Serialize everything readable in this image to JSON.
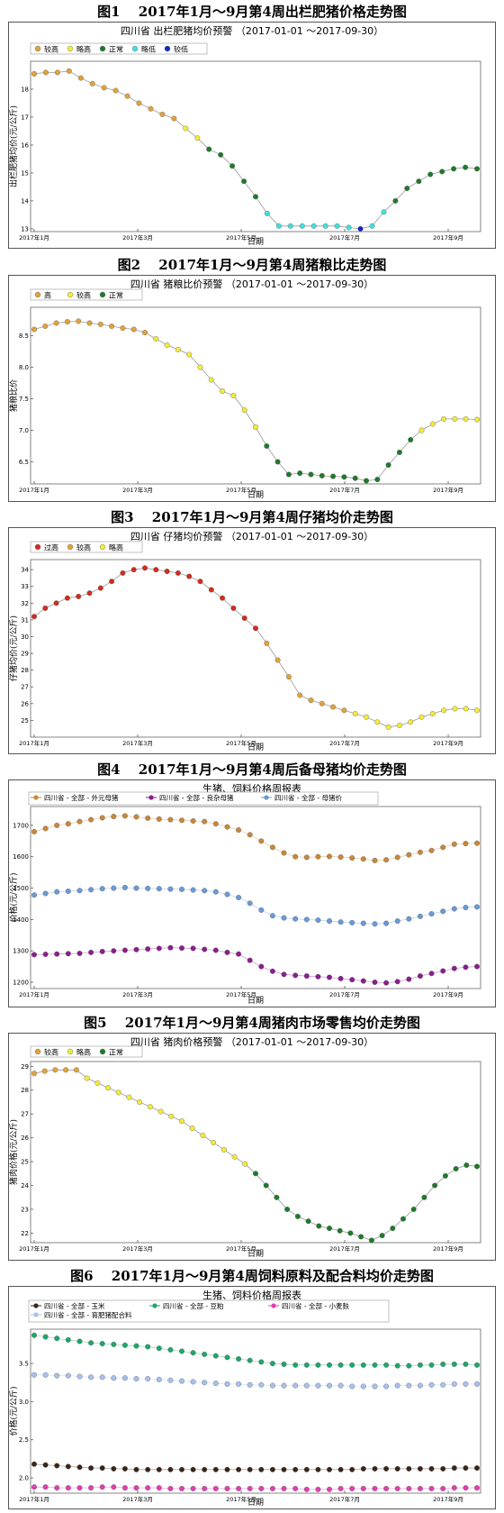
{
  "figures": [
    {
      "caption": "图1　 2017年1月～9月第4周出栏肥猪价格走势图"
    },
    {
      "caption": "图2　 2017年1月～9月第4周猪粮比走势图"
    },
    {
      "caption": "图3　 2017年1月～9月第4周仔猪均价走势图"
    },
    {
      "caption": "图4　 2017年1月～9月第4周后备母猪均价走势图"
    },
    {
      "caption": "图5　 2017年1月～9月第4周猪肉市场零售均价走势图"
    },
    {
      "caption": "图6　 2017年1月～9月第4周饲料原料及配合料均价走势图"
    }
  ],
  "chart_data": [
    {
      "type": "scatter",
      "title": "四川省 出栏肥猪均价预警 （2017-01-01 ～2017-09-30）",
      "xlabel": "日期",
      "ylabel": "出栏肥猪均价(元/公斤)",
      "x_ticks": [
        "2017年1月",
        "2017年3月",
        "2017年5月",
        "2017年7月",
        "2017年9月"
      ],
      "ylim": [
        12.9,
        19.0
      ],
      "y_ticks": [
        13,
        14,
        15,
        16,
        17,
        18
      ],
      "legend": [
        {
          "name": "较高",
          "color": "#e0a23a"
        },
        {
          "name": "略高",
          "color": "#f2ea3a"
        },
        {
          "name": "正常",
          "color": "#1f7a2a"
        },
        {
          "name": "略低",
          "color": "#41dede"
        },
        {
          "name": "较低",
          "color": "#1028c8"
        }
      ],
      "series": [
        {
          "values": [
            18.55,
            18.6,
            18.6,
            18.65,
            18.4,
            18.2,
            18.05,
            17.95,
            17.75,
            17.5,
            17.3,
            17.1,
            16.95,
            16.6,
            16.25,
            15.85,
            15.65,
            15.25,
            14.7,
            14.15,
            13.55,
            13.1,
            13.1,
            13.1,
            13.1,
            13.1,
            13.1,
            13.05,
            13.0,
            13.1,
            13.6,
            14.0,
            14.45,
            14.7,
            14.95,
            15.05,
            15.15,
            15.2,
            15.15
          ],
          "levels": [
            0,
            0,
            0,
            0,
            0,
            0,
            0,
            0,
            0,
            0,
            0,
            0,
            0,
            1,
            1,
            2,
            2,
            2,
            2,
            2,
            3,
            3,
            3,
            3,
            3,
            3,
            3,
            3,
            4,
            3,
            3,
            2,
            2,
            2,
            2,
            2,
            2,
            2,
            2
          ]
        }
      ]
    },
    {
      "type": "scatter",
      "title": "四川省 猪粮比价预警 （2017-01-01 ～2017-09-30）",
      "xlabel": "日期",
      "ylabel": "猪粮比价",
      "x_ticks": [
        "2017年1月",
        "2017年3月",
        "2017年5月",
        "2017年7月",
        "2017年9月"
      ],
      "ylim": [
        6.15,
        8.95
      ],
      "y_ticks": [
        6.5,
        7.0,
        7.5,
        8.0,
        8.5
      ],
      "legend": [
        {
          "name": "高",
          "color": "#e0a23a"
        },
        {
          "name": "较高",
          "color": "#f2ea3a"
        },
        {
          "name": "正常",
          "color": "#1f7a2a"
        }
      ],
      "series": [
        {
          "values": [
            8.6,
            8.65,
            8.7,
            8.72,
            8.73,
            8.7,
            8.68,
            8.65,
            8.62,
            8.6,
            8.55,
            8.45,
            8.35,
            8.28,
            8.2,
            8.0,
            7.8,
            7.62,
            7.55,
            7.32,
            7.05,
            6.75,
            6.5,
            6.3,
            6.32,
            6.3,
            6.28,
            6.27,
            6.26,
            6.24,
            6.2,
            6.22,
            6.45,
            6.65,
            6.85,
            7.0,
            7.1,
            7.18,
            7.18,
            7.18,
            7.17
          ],
          "levels": [
            0,
            0,
            0,
            0,
            0,
            0,
            0,
            0,
            0,
            0,
            0,
            1,
            1,
            1,
            1,
            1,
            1,
            1,
            1,
            1,
            1,
            2,
            2,
            2,
            2,
            2,
            2,
            2,
            2,
            2,
            2,
            2,
            2,
            2,
            2,
            1,
            1,
            1,
            1,
            1,
            1
          ]
        }
      ]
    },
    {
      "type": "scatter",
      "title": "四川省 仔猪均价预警 （2017-01-01 ～2017-09-30）",
      "xlabel": "日期",
      "ylabel": "仔猪均价(元/公斤)",
      "x_ticks": [
        "2017年1月",
        "2017年3月",
        "2017年5月",
        "2017年7月",
        "2017年9月"
      ],
      "ylim": [
        24.0,
        34.6
      ],
      "y_ticks": [
        25,
        26,
        27,
        28,
        29,
        30,
        31,
        32,
        33,
        34
      ],
      "legend": [
        {
          "name": "过高",
          "color": "#d42a1e"
        },
        {
          "name": "较高",
          "color": "#e0a23a"
        },
        {
          "name": "略高",
          "color": "#f2ea3a"
        }
      ],
      "series": [
        {
          "values": [
            31.2,
            31.7,
            32.0,
            32.3,
            32.4,
            32.6,
            32.9,
            33.3,
            33.8,
            34.0,
            34.1,
            34.0,
            33.9,
            33.8,
            33.6,
            33.3,
            32.8,
            32.3,
            31.7,
            31.1,
            30.5,
            29.6,
            28.6,
            27.6,
            26.5,
            26.2,
            26.0,
            25.8,
            25.6,
            25.4,
            25.2,
            24.9,
            24.6,
            24.7,
            24.9,
            25.2,
            25.4,
            25.6,
            25.7,
            25.7,
            25.6
          ],
          "levels": [
            0,
            0,
            0,
            0,
            0,
            0,
            0,
            0,
            0,
            0,
            0,
            0,
            0,
            0,
            0,
            0,
            0,
            0,
            0,
            0,
            0,
            1,
            1,
            1,
            1,
            1,
            1,
            1,
            1,
            2,
            2,
            2,
            2,
            2,
            2,
            2,
            2,
            2,
            2,
            2,
            2
          ]
        }
      ]
    },
    {
      "type": "line",
      "title": "生猪、饲料价格周报表",
      "xlabel": "日期",
      "ylabel": "价格(元/公斤)",
      "x_ticks": [
        "2017年1月",
        "2017年3月",
        "2017年5月",
        "2017年7月",
        "2017年9月"
      ],
      "ylim": [
        1180,
        1760
      ],
      "y_ticks": [
        1200,
        1300,
        1400,
        1500,
        1600,
        1700
      ],
      "series": [
        {
          "name": "四川省 - 全部 - 外元母猪",
          "color": "#c8873a",
          "values": [
            1680,
            1690,
            1700,
            1705,
            1712,
            1718,
            1724,
            1728,
            1730,
            1727,
            1723,
            1720,
            1718,
            1716,
            1714,
            1712,
            1705,
            1695,
            1685,
            1670,
            1650,
            1630,
            1612,
            1600,
            1598,
            1600,
            1601,
            1599,
            1596,
            1593,
            1588,
            1590,
            1598,
            1606,
            1614,
            1620,
            1630,
            1640,
            1642,
            1643
          ]
        },
        {
          "name": "四川省 - 全部 - 良杂母猪",
          "color": "#8a1e8e",
          "values": [
            1288,
            1289,
            1290,
            1291,
            1292,
            1295,
            1298,
            1300,
            1302,
            1304,
            1306,
            1308,
            1310,
            1309,
            1308,
            1305,
            1302,
            1295,
            1290,
            1270,
            1250,
            1235,
            1225,
            1222,
            1220,
            1218,
            1216,
            1212,
            1208,
            1204,
            1200,
            1198,
            1202,
            1210,
            1220,
            1228,
            1236,
            1244,
            1248,
            1250
          ]
        },
        {
          "name": "四川省 - 全部 - 母猪价",
          "color": "#6a9ad6",
          "values": [
            1478,
            1483,
            1488,
            1490,
            1492,
            1495,
            1498,
            1500,
            1502,
            1500,
            1499,
            1498,
            1497,
            1496,
            1494,
            1492,
            1488,
            1480,
            1470,
            1452,
            1430,
            1412,
            1405,
            1402,
            1400,
            1398,
            1395,
            1392,
            1390,
            1388,
            1386,
            1388,
            1395,
            1402,
            1410,
            1418,
            1426,
            1434,
            1438,
            1440
          ]
        }
      ]
    },
    {
      "type": "scatter",
      "title": "四川省 猪肉价格预警 （2017-01-01 ～2017-09-30）",
      "xlabel": "日期",
      "ylabel": "猪肉价格(元/公斤)",
      "x_ticks": [
        "2017年1月",
        "2017年3月",
        "2017年5月",
        "2017年7月",
        "2017年9月"
      ],
      "ylim": [
        21.6,
        29.2
      ],
      "y_ticks": [
        22,
        23,
        24,
        25,
        26,
        27,
        28,
        29
      ],
      "legend": [
        {
          "name": "较高",
          "color": "#e0a23a"
        },
        {
          "name": "略高",
          "color": "#f2ea3a"
        },
        {
          "name": "正常",
          "color": "#1f7a2a"
        }
      ],
      "series": [
        {
          "values": [
            28.7,
            28.8,
            28.85,
            28.85,
            28.85,
            28.5,
            28.3,
            28.1,
            27.9,
            27.7,
            27.5,
            27.3,
            27.1,
            26.9,
            26.7,
            26.4,
            26.1,
            25.8,
            25.5,
            25.2,
            24.9,
            24.5,
            24.0,
            23.5,
            23.0,
            22.7,
            22.5,
            22.3,
            22.2,
            22.1,
            22.0,
            21.85,
            21.7,
            21.9,
            22.2,
            22.6,
            23.0,
            23.5,
            24.0,
            24.4,
            24.7,
            24.85,
            24.8
          ],
          "levels": [
            0,
            0,
            0,
            0,
            0,
            1,
            1,
            1,
            1,
            1,
            1,
            1,
            1,
            1,
            1,
            1,
            1,
            1,
            1,
            1,
            1,
            2,
            2,
            2,
            2,
            2,
            2,
            2,
            2,
            2,
            2,
            2,
            2,
            2,
            2,
            2,
            2,
            2,
            2,
            2,
            2,
            2,
            2
          ]
        }
      ]
    },
    {
      "type": "line",
      "title": "生猪、饲料价格周报表",
      "xlabel": "日期",
      "ylabel": "价格(元/公斤)",
      "x_ticks": [
        "2017年1月",
        "2017年3月",
        "2017年5月",
        "2017年7月",
        "2017年9月"
      ],
      "ylim": [
        1.8,
        3.95
      ],
      "y_ticks": [
        2.0,
        2.5,
        3.0,
        3.5
      ],
      "series": [
        {
          "name": "四川省 - 全部 - 玉米",
          "color": "#3a2418",
          "values": [
            2.18,
            2.17,
            2.16,
            2.15,
            2.14,
            2.13,
            2.13,
            2.12,
            2.12,
            2.11,
            2.11,
            2.11,
            2.11,
            2.11,
            2.11,
            2.11,
            2.11,
            2.11,
            2.11,
            2.11,
            2.11,
            2.11,
            2.11,
            2.11,
            2.11,
            2.11,
            2.11,
            2.11,
            2.11,
            2.12,
            2.12,
            2.12,
            2.12,
            2.12,
            2.12,
            2.12,
            2.12,
            2.13,
            2.13,
            2.13
          ]
        },
        {
          "name": "四川省 - 全部 - 豆粕",
          "color": "#1fa66a",
          "values": [
            3.87,
            3.85,
            3.83,
            3.81,
            3.79,
            3.77,
            3.76,
            3.75,
            3.74,
            3.73,
            3.72,
            3.7,
            3.68,
            3.66,
            3.64,
            3.62,
            3.6,
            3.58,
            3.56,
            3.54,
            3.52,
            3.5,
            3.49,
            3.48,
            3.48,
            3.48,
            3.48,
            3.48,
            3.48,
            3.48,
            3.48,
            3.48,
            3.47,
            3.47,
            3.48,
            3.48,
            3.49,
            3.49,
            3.49,
            3.48
          ]
        },
        {
          "name": "四川省 - 全部 - 小麦麸",
          "color": "#e040b0",
          "values": [
            1.88,
            1.88,
            1.87,
            1.87,
            1.87,
            1.87,
            1.88,
            1.88,
            1.87,
            1.87,
            1.87,
            1.87,
            1.86,
            1.86,
            1.86,
            1.86,
            1.86,
            1.86,
            1.86,
            1.86,
            1.86,
            1.86,
            1.86,
            1.86,
            1.85,
            1.85,
            1.85,
            1.86,
            1.86,
            1.86,
            1.86,
            1.86,
            1.86,
            1.86,
            1.86,
            1.86,
            1.86,
            1.87,
            1.87,
            1.87
          ]
        },
        {
          "name": "四川省 - 全部 - 育肥猪配合料",
          "color": "#a8c0ec",
          "values": [
            3.35,
            3.35,
            3.34,
            3.34,
            3.33,
            3.32,
            3.32,
            3.31,
            3.31,
            3.3,
            3.3,
            3.29,
            3.28,
            3.27,
            3.26,
            3.25,
            3.24,
            3.23,
            3.23,
            3.22,
            3.22,
            3.21,
            3.21,
            3.21,
            3.21,
            3.21,
            3.21,
            3.21,
            3.2,
            3.2,
            3.2,
            3.2,
            3.21,
            3.21,
            3.21,
            3.22,
            3.22,
            3.23,
            3.23,
            3.23
          ]
        }
      ]
    }
  ]
}
